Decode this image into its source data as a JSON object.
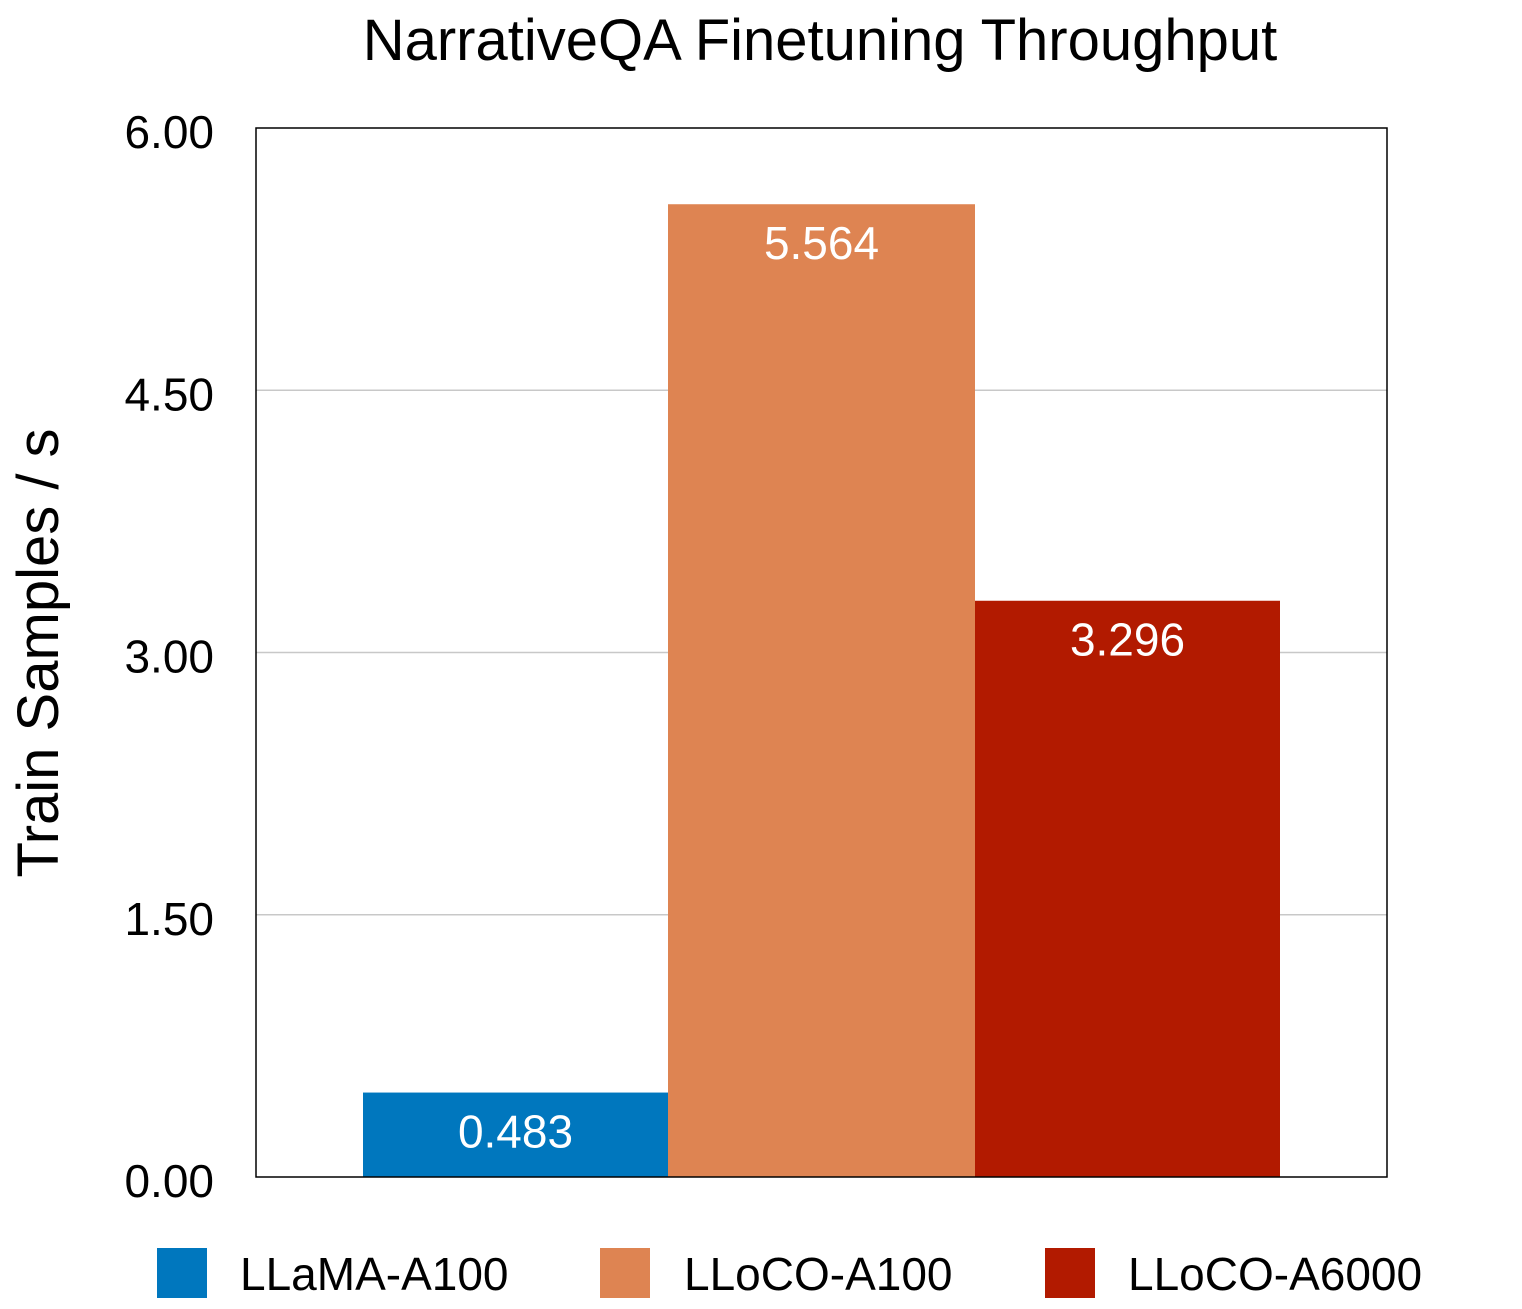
{
  "chart_data": {
    "type": "bar",
    "title": "NarrativeQA Finetuning Throughput",
    "xlabel": "",
    "ylabel": "Train Samples / s",
    "ylim": [
      0,
      6
    ],
    "yticks": [
      "0.00",
      "1.50",
      "3.00",
      "4.50",
      "6.00"
    ],
    "ytick_values": [
      0,
      1.5,
      3,
      4.5,
      6
    ],
    "grid": true,
    "legend_position": "bottom",
    "series": [
      {
        "name": "LLaMA-A100",
        "value": 0.483,
        "label": "0.483",
        "color": "#0077be"
      },
      {
        "name": "LLoCO-A100",
        "value": 5.564,
        "label": "5.564",
        "color": "#de8452"
      },
      {
        "name": "LLoCO-A6000",
        "value": 3.296,
        "label": "3.296",
        "color": "#b21a00"
      }
    ]
  }
}
